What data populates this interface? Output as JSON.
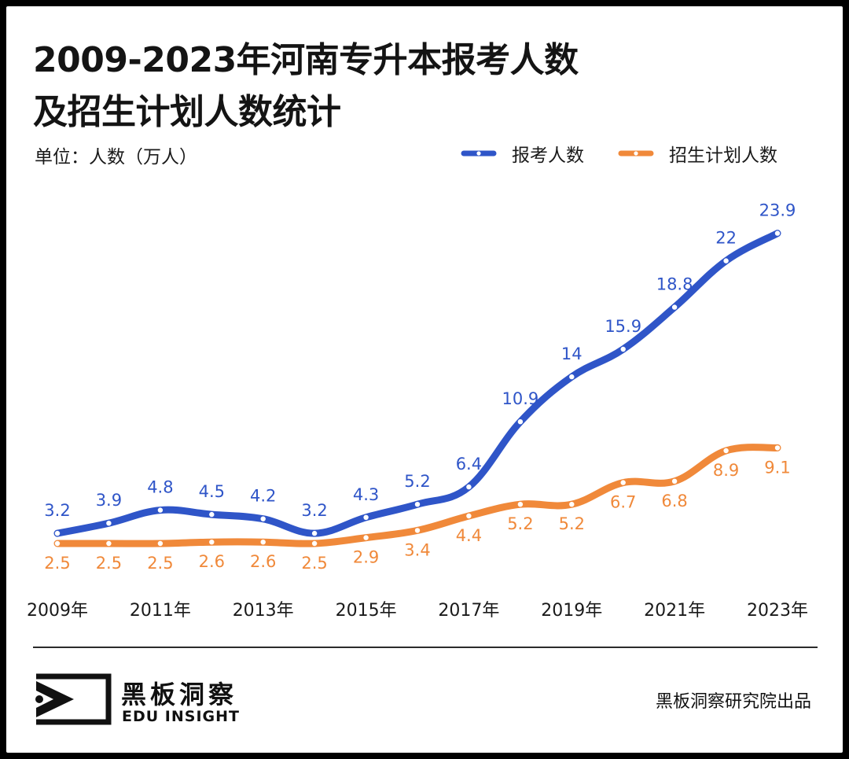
{
  "title_line1": "2009-2023年河南专升本报考人数",
  "title_line2": "及招生计划人数统计",
  "unit_label": "单位：人数（万人）",
  "legend": [
    {
      "name": "报考人数",
      "color": "#2f55c8"
    },
    {
      "name": "招生计划人数",
      "color": "#f0893a"
    }
  ],
  "chart_data": {
    "type": "line",
    "x": [
      "2009年",
      "2010年",
      "2011年",
      "2012年",
      "2013年",
      "2014年",
      "2015年",
      "2016年",
      "2017年",
      "2018年",
      "2019年",
      "2020年",
      "2021年",
      "2022年",
      "2023年"
    ],
    "x_tick_labels": [
      "2009年",
      "2011年",
      "2013年",
      "2015年",
      "2017年",
      "2019年",
      "2021年",
      "2023年"
    ],
    "series": [
      {
        "name": "报考人数",
        "color": "#2f55c8",
        "values": [
          3.2,
          3.9,
          4.8,
          4.5,
          4.2,
          3.2,
          4.3,
          5.2,
          6.4,
          10.9,
          14,
          15.9,
          18.8,
          22,
          23.9
        ],
        "labels": [
          "3.2",
          "3.9",
          "4.8",
          "4.5",
          "4.2",
          "3.2",
          "4.3",
          "5.2",
          "6.4",
          "10.9",
          "14",
          "15.9",
          "18.8",
          "22",
          "23.9"
        ]
      },
      {
        "name": "招生计划人数",
        "color": "#f0893a",
        "values": [
          2.5,
          2.5,
          2.5,
          2.6,
          2.6,
          2.5,
          2.9,
          3.4,
          4.4,
          5.2,
          5.2,
          6.7,
          6.8,
          8.9,
          9.1
        ],
        "labels": [
          "2.5",
          "2.5",
          "2.5",
          "2.6",
          "2.6",
          "2.5",
          "2.9",
          "3.4",
          "4.4",
          "5.2",
          "5.2",
          "6.7",
          "6.8",
          "8.9",
          "9.1"
        ]
      }
    ],
    "xlabel": "",
    "ylabel": "人数（万人）",
    "grid": false,
    "legend_position": "top-right"
  },
  "footer": {
    "brand_cn": "黑板洞察",
    "brand_en": "EDU INSIGHT",
    "credit": "黑板洞察研究院出品"
  }
}
